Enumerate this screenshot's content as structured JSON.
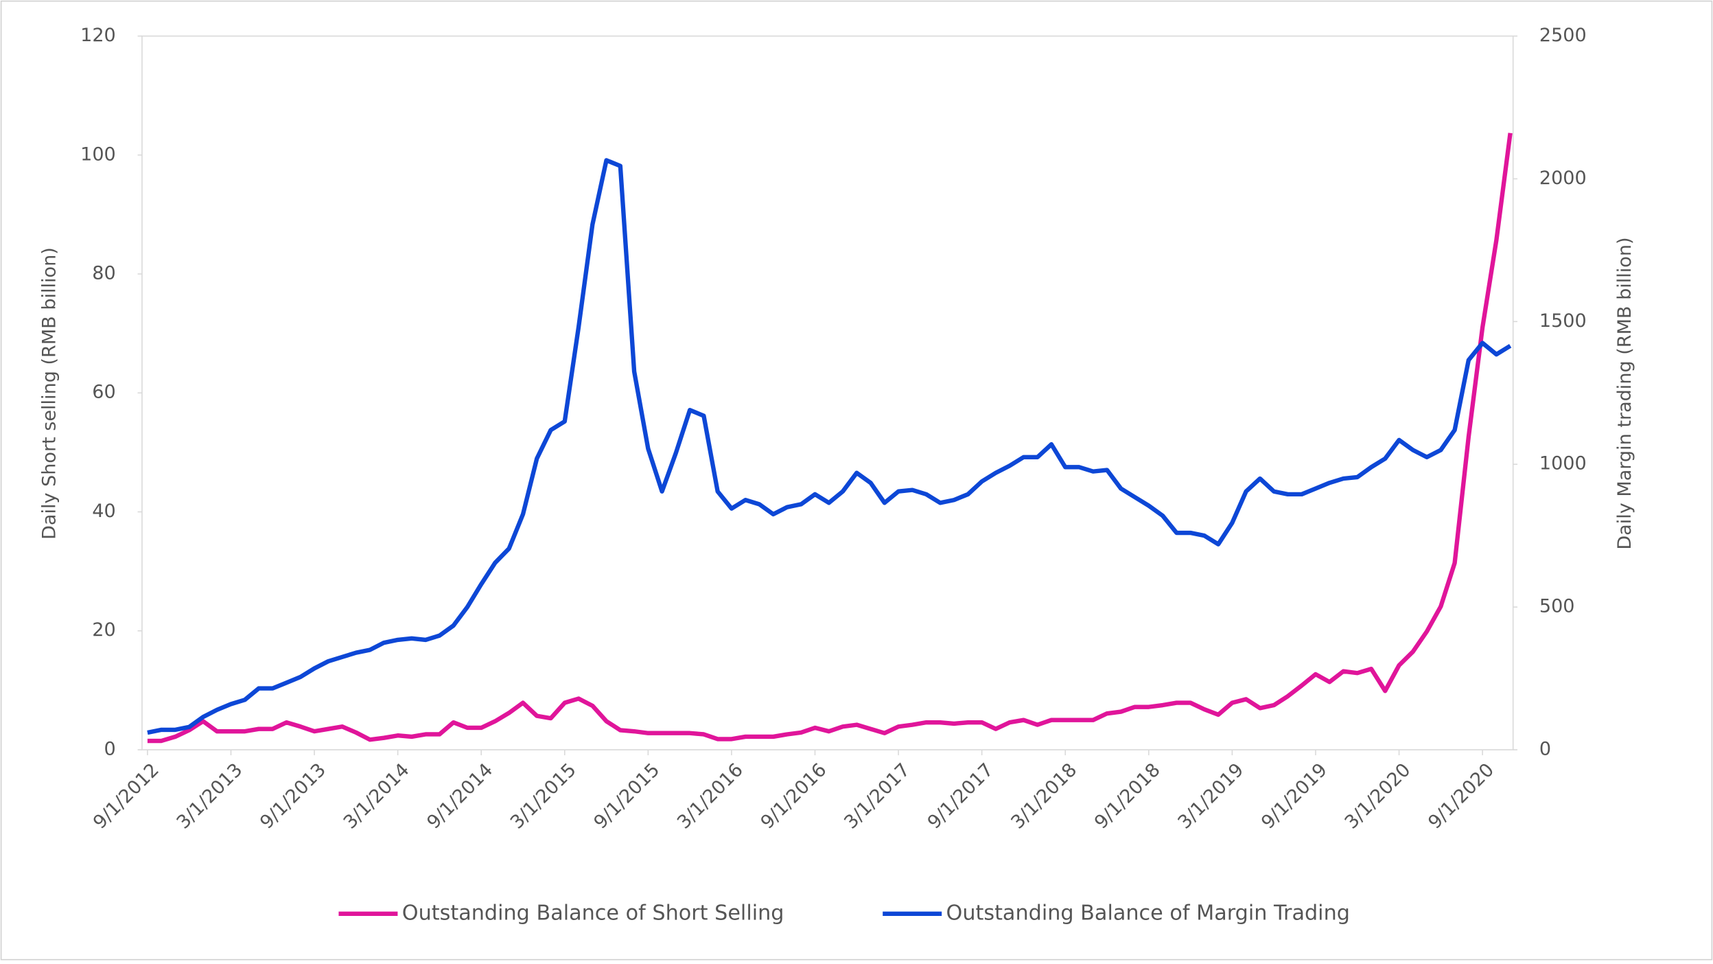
{
  "chart_data": {
    "type": "line",
    "y_label": "Daily Short selling (RMB billion)",
    "y2_label": "Daily Margin trading (RMB billion)",
    "x": [
      "9/1/2012",
      "10/1/2012",
      "11/1/2012",
      "12/1/2012",
      "1/1/2013",
      "2/1/2013",
      "3/1/2013",
      "4/1/2013",
      "5/1/2013",
      "6/1/2013",
      "7/1/2013",
      "8/1/2013",
      "9/1/2013",
      "10/1/2013",
      "11/1/2013",
      "12/1/2013",
      "1/1/2014",
      "2/1/2014",
      "3/1/2014",
      "4/1/2014",
      "5/1/2014",
      "6/1/2014",
      "7/1/2014",
      "8/1/2014",
      "9/1/2014",
      "10/1/2014",
      "11/1/2014",
      "12/1/2014",
      "1/1/2015",
      "2/1/2015",
      "3/1/2015",
      "4/1/2015",
      "5/1/2015",
      "6/1/2015",
      "7/1/2015",
      "8/1/2015",
      "9/1/2015",
      "10/1/2015",
      "11/1/2015",
      "12/1/2015",
      "1/1/2016",
      "2/1/2016",
      "3/1/2016",
      "4/1/2016",
      "5/1/2016",
      "6/1/2016",
      "7/1/2016",
      "8/1/2016",
      "9/1/2016",
      "10/1/2016",
      "11/1/2016",
      "12/1/2016",
      "1/1/2017",
      "2/1/2017",
      "3/1/2017",
      "4/1/2017",
      "5/1/2017",
      "6/1/2017",
      "7/1/2017",
      "8/1/2017",
      "9/1/2017",
      "10/1/2017",
      "11/1/2017",
      "12/1/2017",
      "1/1/2018",
      "2/1/2018",
      "3/1/2018",
      "4/1/2018",
      "5/1/2018",
      "6/1/2018",
      "7/1/2018",
      "8/1/2018",
      "9/1/2018",
      "10/1/2018",
      "11/1/2018",
      "12/1/2018",
      "1/1/2019",
      "2/1/2019",
      "3/1/2019",
      "4/1/2019",
      "5/1/2019",
      "6/1/2019",
      "7/1/2019",
      "8/1/2019",
      "9/1/2019",
      "10/1/2019",
      "11/1/2019",
      "12/1/2019",
      "1/1/2020",
      "2/1/2020",
      "3/1/2020",
      "4/1/2020",
      "5/1/2020",
      "6/1/2020",
      "7/1/2020",
      "8/1/2020",
      "9/1/2020",
      "10/1/2020",
      "11/1/2020"
    ],
    "xticks": [
      "9/1/2012",
      "3/1/2013",
      "9/1/2013",
      "3/1/2014",
      "9/1/2014",
      "3/1/2015",
      "9/1/2015",
      "3/1/2016",
      "9/1/2016",
      "3/1/2017",
      "9/1/2017",
      "3/1/2018",
      "9/1/2018",
      "3/1/2019",
      "9/1/2019",
      "3/1/2020",
      "9/1/2020"
    ],
    "ylim": [
      0,
      120
    ],
    "yticks": [
      0,
      20,
      40,
      60,
      80,
      100,
      120
    ],
    "y2lim": [
      0,
      2500
    ],
    "y2ticks": [
      0,
      500,
      1000,
      1500,
      2000,
      2500
    ],
    "legend": "bottom",
    "series": [
      {
        "name": "Outstanding Balance of Short Selling",
        "color": "#e0159a",
        "values": [
          1.5,
          1.5,
          2.2,
          3.3,
          4.8,
          3.1,
          3.1,
          3.1,
          3.5,
          3.5,
          4.6,
          3.9,
          3.1,
          3.5,
          3.9,
          2.9,
          1.7,
          2,
          2.4,
          2.2,
          2.6,
          2.6,
          4.6,
          3.7,
          3.7,
          4.8,
          6.2,
          7.9,
          5.7,
          5.3,
          7.9,
          8.6,
          7.4,
          4.8,
          3.3,
          3.1,
          2.8,
          2.8,
          2.8,
          2.8,
          2.6,
          1.8,
          1.8,
          2.2,
          2.2,
          2.2,
          2.6,
          2.9,
          3.7,
          3.1,
          3.9,
          4.2,
          3.5,
          2.8,
          3.9,
          4.2,
          4.6,
          4.6,
          4.4,
          4.6,
          4.6,
          3.5,
          4.6,
          5,
          4.2,
          5,
          5,
          5,
          5,
          6.1,
          6.4,
          7.2,
          7.2,
          7.5,
          7.9,
          7.9,
          6.8,
          5.9,
          7.9,
          8.5,
          7,
          7.5,
          9,
          10.8,
          12.7,
          11.4,
          13.2,
          12.9,
          13.6,
          9.9,
          14.2,
          16.5,
          19.9,
          24.1,
          31.4,
          52.6,
          71,
          85.7,
          103.7
        ]
      },
      {
        "name": "Outstanding Balance of Margin Trading",
        "color": "#0d47d6",
        "axis": "y2",
        "values": [
          60,
          70,
          70,
          80,
          115,
          140,
          160,
          175,
          215,
          215,
          235,
          255,
          285,
          310,
          325,
          340,
          350,
          375,
          385,
          390,
          385,
          400,
          435,
          500,
          580,
          655,
          705,
          825,
          1020,
          1120,
          1150,
          1480,
          1840,
          2065,
          2045,
          1325,
          1055,
          905,
          1040,
          1190,
          1170,
          905,
          845,
          875,
          860,
          825,
          850,
          860,
          895,
          865,
          905,
          970,
          935,
          865,
          905,
          910,
          895,
          865,
          875,
          895,
          940,
          970,
          995,
          1025,
          1025,
          1070,
          990,
          990,
          975,
          980,
          915,
          885,
          855,
          820,
          760,
          760,
          750,
          720,
          795,
          905,
          950,
          905,
          895,
          895,
          915,
          935,
          950,
          955,
          990,
          1020,
          1085,
          1050,
          1025,
          1050,
          1120,
          1365,
          1425,
          1385,
          1415
        ]
      }
    ]
  }
}
